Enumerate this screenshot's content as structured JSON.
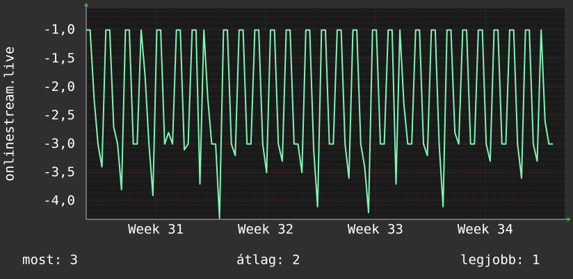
{
  "chart_data": {
    "type": "line",
    "y_label": "onlinestream.live",
    "x": [
      0,
      0.25,
      0.5,
      0.75,
      1,
      1.25,
      1.5,
      1.75,
      2,
      2.25,
      2.5,
      2.75,
      3,
      3.25,
      3.5,
      3.75,
      4,
      4.25,
      4.5,
      4.75,
      5,
      5.25,
      5.5,
      5.75,
      6,
      6.25,
      6.5,
      6.75,
      7,
      7.25,
      7.5,
      7.75,
      8,
      8.25,
      8.5,
      8.75,
      9,
      9.25,
      9.5,
      9.75,
      10,
      10.25,
      10.5,
      10.75,
      11,
      11.25,
      11.5,
      11.75,
      12,
      12.25,
      12.5,
      12.75,
      13,
      13.25,
      13.5,
      13.75,
      14,
      14.25,
      14.5,
      14.75,
      15,
      15.25,
      15.5,
      15.75,
      16,
      16.25,
      16.5,
      16.75,
      17,
      17.25,
      17.5,
      17.75,
      18,
      18.25,
      18.5,
      18.75,
      19,
      19.25,
      19.5,
      19.75,
      20,
      20.25,
      20.5,
      20.75,
      21,
      21.25,
      21.5,
      21.75,
      22,
      22.25,
      22.5,
      22.75,
      23,
      23.25,
      23.5,
      23.75,
      24,
      24.25,
      24.5,
      24.75,
      25,
      25.25,
      25.5,
      25.75,
      26,
      26.25,
      26.5,
      26.75,
      27,
      27.25,
      27.5,
      27.75,
      28,
      28.25,
      28.5,
      28.75,
      29,
      29.25,
      29.5,
      29.75
    ],
    "series": [
      {
        "name": "onlinestream.live",
        "color": "#7ff7b4",
        "values": [
          -1,
          -1,
          -2.2,
          -3,
          -3.4,
          -1,
          -1,
          -2.7,
          -3,
          -3.8,
          -1,
          -1,
          -3,
          -3,
          -1,
          -1.8,
          -3,
          -3.9,
          -1,
          -1,
          -3,
          -2.8,
          -3,
          -1,
          -1,
          -3.1,
          -3,
          -1,
          -1,
          -3.7,
          -1,
          -2.2,
          -3,
          -3,
          -4.3,
          -1,
          -1,
          -3,
          -3.2,
          -1,
          -1,
          -3,
          -3,
          -1,
          -1,
          -3,
          -3.5,
          -1,
          -1,
          -3,
          -3.3,
          -1,
          -1,
          -3,
          -3,
          -3.5,
          -1,
          -1,
          -3.1,
          -4.1,
          -1,
          -1,
          -3,
          -3,
          -1,
          -1,
          -3,
          -3.6,
          -1,
          -1,
          -3,
          -3.4,
          -4.2,
          -1,
          -1,
          -3,
          -3,
          -1,
          -1,
          -3.7,
          -1,
          -2.3,
          -3,
          -3,
          -1,
          -1,
          -3,
          -3.2,
          -1,
          -1,
          -3,
          -4.1,
          -1,
          -1,
          -2.8,
          -3,
          -1,
          -1,
          -3,
          -3,
          -1,
          -1,
          -3,
          -3.3,
          -1,
          -1,
          -3,
          -3,
          -1,
          -1,
          -3,
          -3.6,
          -1,
          -1,
          -3,
          -3.3,
          -1,
          -2.6,
          -3,
          -3
        ]
      }
    ],
    "xlim": [
      0,
      30.5
    ],
    "xticks": [
      {
        "value": 4.44,
        "label": "Week 31"
      },
      {
        "value": 11.44,
        "label": "Week 32"
      },
      {
        "value": 18.44,
        "label": "Week 33"
      },
      {
        "value": 25.44,
        "label": "Week 34"
      }
    ],
    "ylim": [
      -4.32,
      -0.62
    ],
    "yticks": [
      {
        "value": -1,
        "label": "-1,0"
      },
      {
        "value": -1.5,
        "label": "-1,5"
      },
      {
        "value": -2,
        "label": "-2,0"
      },
      {
        "value": -2.5,
        "label": "-2,5"
      },
      {
        "value": -3,
        "label": "-3,0"
      },
      {
        "value": -3.5,
        "label": "-3,5"
      },
      {
        "value": -4,
        "label": "-4,0"
      }
    ],
    "grid": true,
    "legend": [
      "most: 3",
      "átlag: 2",
      "legjobb: 1"
    ]
  }
}
